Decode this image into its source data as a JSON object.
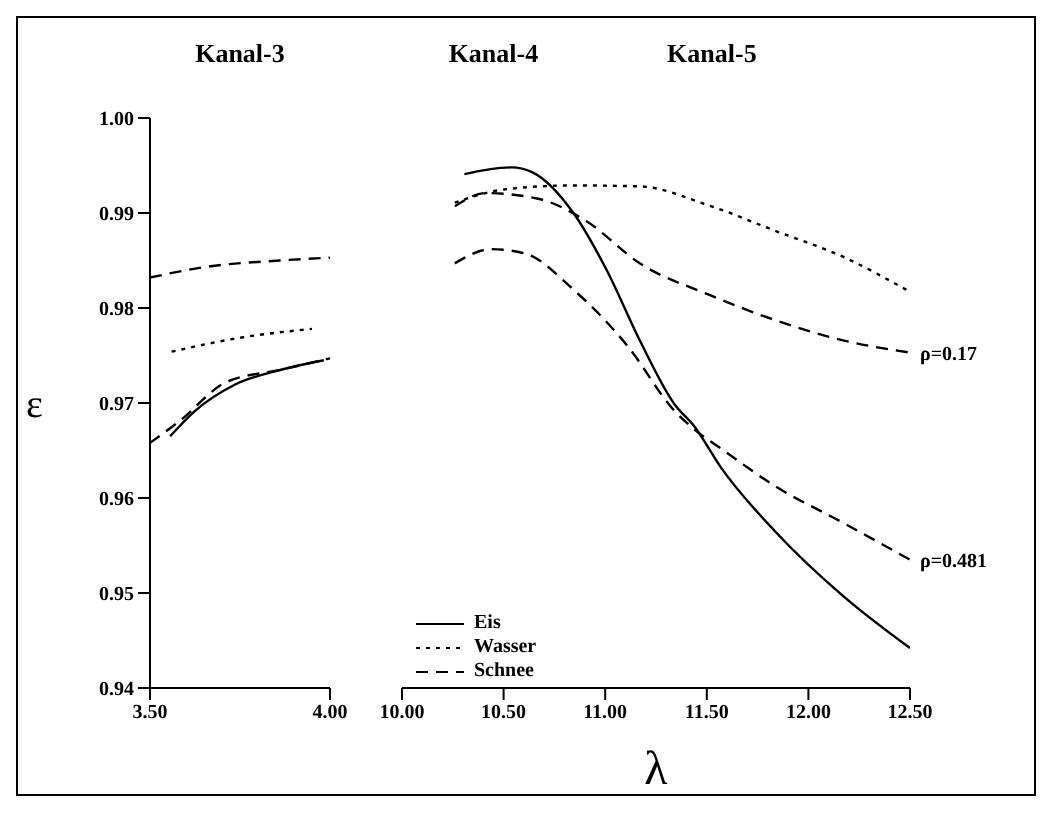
{
  "chart_data": [
    {
      "type": "line",
      "title": "Kanal-3",
      "ylabel": "ε",
      "xlim": [
        3.5,
        4.0
      ],
      "xticks": [
        {
          "value": 3.5,
          "label": "3.50"
        },
        {
          "value": 4.0,
          "label": "4.00"
        }
      ],
      "ylim": [
        0.94,
        1.0
      ],
      "yticks": [
        0.94,
        0.95,
        0.96,
        0.97,
        0.98,
        0.99,
        {
          "value": 1.0,
          "label": "1.00"
        }
      ],
      "grid": false,
      "legend": false,
      "series": [
        {
          "color": "#000000",
          "line_style": "solid",
          "x": [
            3.556,
            3.626,
            3.734,
            3.864,
            3.983
          ],
          "values": [
            0.9665,
            0.9692,
            0.9719,
            0.9735,
            0.9745
          ]
        },
        {
          "color": "#000000",
          "line_style": "dotted",
          "x": [
            3.56,
            3.755,
            3.95
          ],
          "values": [
            0.9754,
            0.9769,
            0.9778
          ]
        },
        {
          "color": "#000000",
          "line_style": "dashed",
          "x": [
            3.5,
            3.65,
            3.86,
            4.0
          ],
          "values": [
            0.9832,
            0.9843,
            0.985,
            0.9853
          ]
        },
        {
          "color": "#000000",
          "line_style": "dashed",
          "x": [
            3.5,
            3.582,
            3.712,
            3.864,
            4.0
          ],
          "values": [
            0.9658,
            0.9681,
            0.9722,
            0.9735,
            0.9747
          ]
        }
      ]
    },
    {
      "type": "line",
      "xlabel": "λ",
      "annotations": [
        "Kanal-4",
        "Kanal-5",
        {
          "text": "ρ=0.17",
          "x": 12.5,
          "y": 0.9753
        },
        {
          "text": "ρ=0.481",
          "x": 12.5,
          "y": 0.9535
        }
      ],
      "xlim": [
        10.0,
        12.5
      ],
      "xticks": [
        {
          "value": 10.0,
          "label": "10.00"
        },
        {
          "value": 10.5,
          "label": "10.50"
        },
        {
          "value": 11.0,
          "label": "11.00"
        },
        {
          "value": 11.5,
          "label": "11.50"
        },
        {
          "value": 12.0,
          "label": "12.00"
        },
        {
          "value": 12.5,
          "label": "12.50"
        }
      ],
      "ylim": [
        0.94,
        1.0
      ],
      "tick_labels": "x",
      "grid": false,
      "legend": "bottom left",
      "series": [
        {
          "name": "Eis",
          "color": "#000000",
          "line_style": "solid",
          "x": [
            10.307,
            10.54,
            10.64,
            10.84,
            11.007,
            11.17,
            11.34,
            11.44,
            11.57,
            11.84,
            12.17,
            12.5
          ],
          "values": [
            0.9941,
            0.9948,
            0.9943,
            0.9901,
            0.984,
            0.9766,
            0.9699,
            0.9675,
            0.9632,
            0.9564,
            0.9497,
            0.9442
          ]
        },
        {
          "name": "Wasser",
          "color": "#000000",
          "line_style": "dotted",
          "x": [
            10.26,
            10.51,
            10.84,
            11.17,
            11.51,
            11.84,
            12.17,
            12.5
          ],
          "values": [
            0.9911,
            0.9925,
            0.9929,
            0.9928,
            0.9908,
            0.9881,
            0.9854,
            0.9817
          ]
        },
        {
          "name": "Schnee",
          "color": "#000000",
          "line_style": "dashed",
          "x": [
            10.26,
            10.41,
            10.67,
            10.91,
            11.17,
            11.51,
            11.84,
            12.17,
            12.5
          ],
          "values": [
            0.9907,
            0.9921,
            0.9915,
            0.9891,
            0.9847,
            0.9814,
            0.9787,
            0.9766,
            0.9753
          ]
        },
        {
          "color": "#000000",
          "line_style": "dashed",
          "x": [
            10.26,
            10.44,
            10.61,
            10.84,
            11.11,
            11.34,
            11.44,
            11.57,
            11.84,
            12.17,
            12.5
          ],
          "values": [
            0.9847,
            0.9862,
            0.9857,
            0.982,
            0.976,
            0.9692,
            0.9672,
            0.9652,
            0.9612,
            0.9574,
            0.9535
          ]
        }
      ]
    }
  ]
}
